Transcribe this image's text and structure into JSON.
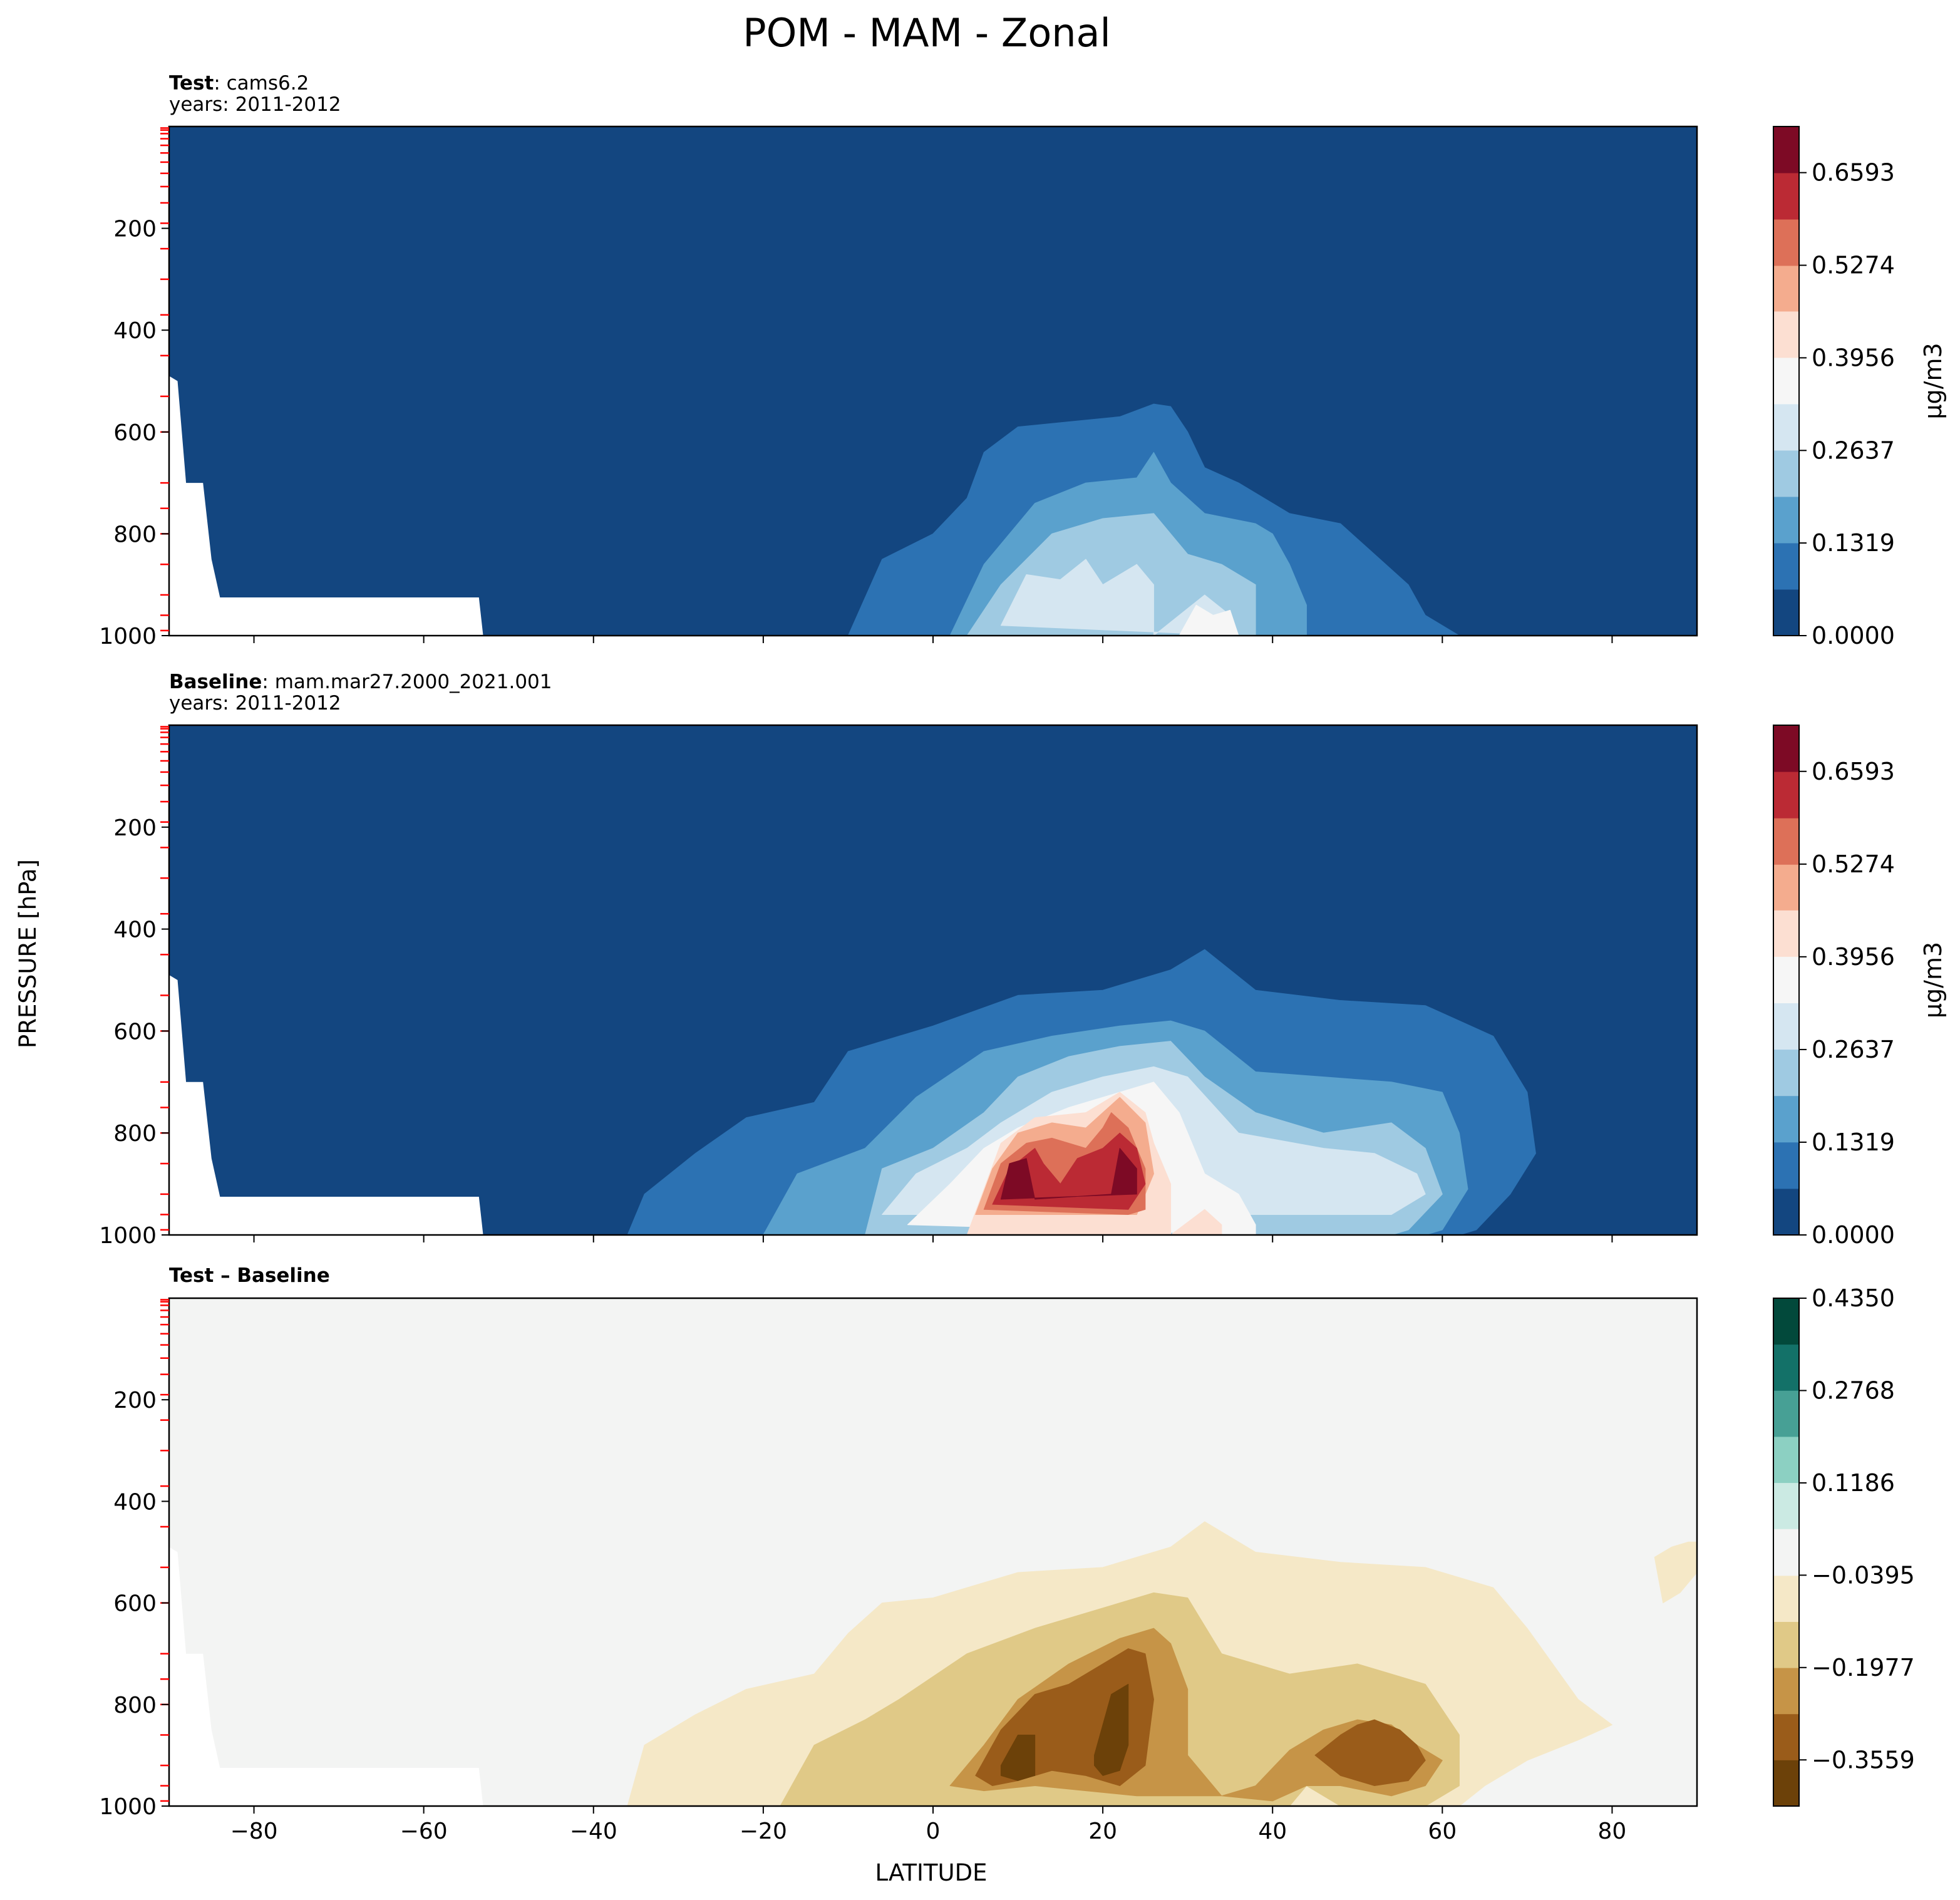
{
  "figure": {
    "title": "POM - MAM - Zonal",
    "ylabel": "PRESSURE [hPa]",
    "xlabel": "LATITUDE"
  },
  "chart_data": [
    {
      "type": "heatmap",
      "panel": "test",
      "label_bold": "Test",
      "label_sep": ": ",
      "label_text": "cams6.2",
      "years": "years: 2011-2012",
      "colorbar": {
        "label": "μg/m3",
        "levels": [
          0.0,
          0.066,
          0.132,
          0.198,
          0.264,
          0.33,
          0.396,
          0.462,
          0.527,
          0.593,
          0.659,
          0.725
        ],
        "tick_values": [
          0.0,
          0.1319,
          0.2637,
          0.3956,
          0.5274,
          0.6593
        ],
        "tick_labels": [
          "0.0000",
          "0.1319",
          "0.2637",
          "0.3956",
          "0.5274",
          "0.6593"
        ],
        "colors": [
          "#134680",
          "#2c72b3",
          "#5aa1cd",
          "#9fcae2",
          "#d5e6f1",
          "#f6f6f6",
          "#fcdfd2",
          "#f4ac8e",
          "#dd7058",
          "#bb2a34",
          "#7d0a25"
        ]
      },
      "features": [
        {
          "level": 1,
          "lat": [
            -10,
            -6,
            0,
            4,
            6,
            10,
            16,
            22,
            26,
            28,
            30,
            32,
            36,
            42,
            48,
            56,
            58,
            62
          ],
          "p": [
            1000,
            850,
            800,
            730,
            640,
            590,
            580,
            570,
            545,
            550,
            600,
            670,
            700,
            760,
            780,
            900,
            960,
            1000
          ]
        },
        {
          "level": 2,
          "lat": [
            2,
            6,
            12,
            18,
            24,
            26,
            28,
            32,
            38,
            40,
            42,
            44,
            44
          ],
          "p": [
            1000,
            860,
            740,
            700,
            690,
            640,
            700,
            760,
            780,
            800,
            860,
            940,
            1000
          ]
        },
        {
          "level": 3,
          "lat": [
            4,
            8,
            14,
            20,
            26,
            28,
            30,
            34,
            38,
            38
          ],
          "p": [
            1000,
            900,
            800,
            770,
            760,
            800,
            840,
            860,
            900,
            1000
          ]
        },
        {
          "level": 4,
          "lat": [
            8,
            11,
            15,
            18,
            20,
            22,
            24,
            26,
            26,
            32,
            35,
            36
          ],
          "p": [
            980,
            880,
            890,
            850,
            900,
            880,
            860,
            900,
            1000,
            920,
            960,
            1000
          ]
        },
        {
          "level": 5,
          "lat": [
            29,
            31,
            33,
            35,
            36
          ],
          "p": [
            1000,
            940,
            960,
            950,
            1000
          ]
        }
      ],
      "xlim": [
        -90,
        90
      ],
      "ylim": [
        1000,
        0
      ]
    },
    {
      "type": "heatmap",
      "panel": "baseline",
      "label_bold": "Baseline",
      "label_sep": ": ",
      "label_text": "mam.mar27.2000_2021.001",
      "years": "years: 2011-2012",
      "colorbar": {
        "label": "μg/m3",
        "levels": [
          0.0,
          0.066,
          0.132,
          0.198,
          0.264,
          0.33,
          0.396,
          0.462,
          0.527,
          0.593,
          0.659,
          0.725
        ],
        "tick_values": [
          0.0,
          0.1319,
          0.2637,
          0.3956,
          0.5274,
          0.6593
        ],
        "tick_labels": [
          "0.0000",
          "0.1319",
          "0.2637",
          "0.3956",
          "0.5274",
          "0.6593"
        ],
        "colors": [
          "#134680",
          "#2c72b3",
          "#5aa1cd",
          "#9fcae2",
          "#d5e6f1",
          "#f6f6f6",
          "#fcdfd2",
          "#f4ac8e",
          "#dd7058",
          "#bb2a34",
          "#7d0a25"
        ]
      },
      "features": [
        {
          "level": 1,
          "lat": [
            -36,
            -34,
            -28,
            -22,
            -14,
            -10,
            -4,
            0,
            10,
            20,
            28,
            32,
            38,
            48,
            58,
            66,
            70,
            71,
            68,
            64,
            62
          ],
          "p": [
            1000,
            920,
            840,
            770,
            740,
            640,
            610,
            590,
            530,
            520,
            480,
            440,
            520,
            540,
            550,
            610,
            720,
            840,
            920,
            990,
            1000
          ]
        },
        {
          "level": 2,
          "lat": [
            -20,
            -16,
            -8,
            -2,
            6,
            14,
            22,
            28,
            32,
            38,
            46,
            54,
            60,
            62,
            63,
            60,
            58
          ],
          "p": [
            1000,
            880,
            830,
            730,
            640,
            610,
            590,
            580,
            600,
            680,
            690,
            700,
            720,
            800,
            910,
            990,
            1000
          ]
        },
        {
          "level": 3,
          "lat": [
            -8,
            -6,
            0,
            6,
            10,
            16,
            22,
            28,
            32,
            38,
            46,
            54,
            58,
            60,
            56,
            54
          ],
          "p": [
            1000,
            870,
            830,
            760,
            690,
            650,
            630,
            620,
            690,
            760,
            800,
            780,
            830,
            920,
            990,
            1000
          ]
        },
        {
          "level": 4,
          "lat": [
            -6,
            -2,
            4,
            8,
            14,
            20,
            26,
            30,
            36,
            46,
            52,
            57,
            58,
            54
          ],
          "p": [
            960,
            880,
            830,
            780,
            720,
            690,
            670,
            690,
            800,
            830,
            840,
            880,
            920,
            960
          ]
        },
        {
          "level": 5,
          "lat": [
            -3,
            2,
            6,
            10,
            16,
            22,
            26,
            29,
            32,
            36,
            38,
            38
          ],
          "p": [
            980,
            900,
            830,
            790,
            750,
            720,
            700,
            760,
            880,
            920,
            980,
            1000
          ]
        },
        {
          "level": 6,
          "lat": [
            4,
            6,
            8,
            12,
            18,
            22,
            25,
            26,
            28,
            28,
            32,
            34,
            34
          ],
          "p": [
            1000,
            910,
            820,
            770,
            760,
            720,
            760,
            820,
            900,
            1000,
            950,
            980,
            1000
          ]
        },
        {
          "level": 7,
          "lat": [
            5,
            7,
            10,
            14,
            18,
            20,
            22,
            25,
            26,
            24
          ],
          "p": [
            960,
            870,
            800,
            780,
            790,
            760,
            730,
            780,
            880,
            960
          ]
        },
        {
          "level": 8,
          "lat": [
            6,
            8,
            11,
            14,
            18,
            20,
            21,
            23,
            25,
            25,
            23
          ],
          "p": [
            950,
            860,
            820,
            810,
            830,
            790,
            760,
            790,
            870,
            950,
            960
          ]
        },
        {
          "level": 9,
          "lat": [
            7,
            9,
            12,
            13,
            15,
            17,
            20,
            22,
            24,
            25,
            23
          ],
          "p": [
            940,
            870,
            830,
            860,
            900,
            850,
            830,
            800,
            830,
            900,
            950
          ]
        },
        {
          "level": 10,
          "lat": [
            8,
            9,
            11,
            12,
            21,
            22,
            24,
            24
          ],
          "p": [
            930,
            860,
            850,
            930,
            920,
            830,
            870,
            920
          ]
        }
      ],
      "xlim": [
        -90,
        90
      ],
      "ylim": [
        1000,
        0
      ]
    },
    {
      "type": "heatmap",
      "panel": "difference",
      "label_bold": "Test – Baseline",
      "colorbar": {
        "label": "",
        "levels": [
          -0.435,
          -0.356,
          -0.277,
          -0.198,
          -0.119,
          -0.04,
          0.04,
          0.119,
          0.198,
          0.277,
          0.356,
          0.435
        ],
        "tick_values": [
          -0.3559,
          -0.1977,
          -0.0395,
          0.1186,
          0.2768,
          0.435
        ],
        "tick_labels": [
          "−0.3559",
          "−0.1977",
          "−0.0395",
          "0.1186",
          "0.2768",
          "0.4350"
        ],
        "colors": [
          "#6c4109",
          "#9a5c1a",
          "#c69447",
          "#e0c987",
          "#f5e8c7",
          "#f3f4f3",
          "#cbeae3",
          "#8cd0c2",
          "#47a095",
          "#137168",
          "#02493b"
        ]
      },
      "features": [
        {
          "level": -1,
          "lat": [
            -36,
            -34,
            -28,
            -22,
            -14,
            -10,
            -6,
            0,
            10,
            20,
            28,
            32,
            38,
            48,
            58,
            66,
            70,
            73,
            76,
            80,
            76,
            70,
            65,
            62
          ],
          "p": [
            1000,
            880,
            820,
            770,
            740,
            660,
            600,
            590,
            540,
            530,
            490,
            440,
            500,
            520,
            530,
            570,
            650,
            720,
            790,
            840,
            870,
            910,
            960,
            1000
          ]
        },
        {
          "level": -1,
          "lat": [
            85,
            87,
            89,
            90,
            90,
            88,
            86
          ],
          "p": [
            510,
            490,
            480,
            480,
            540,
            580,
            600
          ]
        },
        {
          "level": -2,
          "lat": [
            -18,
            -14,
            -8,
            -4,
            4,
            12,
            20,
            26,
            30,
            34,
            42,
            50,
            58,
            62,
            62,
            58,
            54,
            48,
            44,
            42
          ],
          "p": [
            1000,
            880,
            830,
            790,
            700,
            650,
            610,
            580,
            590,
            700,
            740,
            720,
            760,
            860,
            960,
            1000,
            1000,
            1000,
            960,
            1000
          ]
        },
        {
          "level": -3,
          "lat": [
            2,
            6,
            10,
            16,
            22,
            26,
            28,
            30,
            30,
            34,
            38,
            42,
            46,
            50,
            54,
            57,
            60,
            58,
            54,
            48,
            44,
            40,
            34,
            30,
            24,
            18,
            12,
            6
          ],
          "p": [
            960,
            880,
            790,
            720,
            670,
            650,
            680,
            770,
            900,
            980,
            960,
            890,
            850,
            830,
            840,
            880,
            910,
            960,
            980,
            960,
            960,
            990,
            980,
            980,
            980,
            970,
            960,
            970
          ]
        },
        {
          "level": -4,
          "lat": [
            5,
            8,
            12,
            16,
            20,
            23,
            25,
            26,
            25,
            22,
            18,
            14,
            10,
            7
          ],
          "p": [
            940,
            850,
            780,
            760,
            720,
            690,
            700,
            790,
            920,
            960,
            940,
            930,
            950,
            960
          ]
        },
        {
          "level": -4,
          "lat": [
            45,
            48,
            50,
            52,
            55,
            57,
            58,
            56,
            52,
            48
          ],
          "p": [
            900,
            860,
            840,
            830,
            850,
            880,
            910,
            950,
            960,
            940
          ]
        },
        {
          "level": -5,
          "lat": [
            8,
            10,
            12,
            12,
            10,
            8
          ],
          "p": [
            920,
            860,
            860,
            940,
            950,
            940
          ]
        },
        {
          "level": -5,
          "lat": [
            19,
            21,
            23,
            23,
            22,
            20,
            19
          ],
          "p": [
            900,
            780,
            760,
            880,
            930,
            940,
            920
          ]
        }
      ],
      "xlim": [
        -90,
        90
      ],
      "ylim": [
        1000,
        0
      ]
    }
  ],
  "axes": {
    "x_ticks": [
      -80,
      -60,
      -40,
      -20,
      0,
      20,
      40,
      60,
      80
    ],
    "x_tick_labels": [
      "−80",
      "−60",
      "−40",
      "−20",
      "0",
      "20",
      "40",
      "60",
      "80"
    ],
    "y_ticks": [
      200,
      400,
      600,
      800,
      1000
    ],
    "y_tick_labels": [
      "200",
      "400",
      "600",
      "800",
      "1000"
    ],
    "model_levels_hpa": [
      3,
      7,
      14,
      24,
      37,
      52,
      70,
      92,
      118,
      150,
      190,
      240,
      300,
      370,
      450,
      530,
      600,
      700,
      750,
      800,
      860,
      920,
      960,
      990
    ],
    "level_marker_color": "#ff0000"
  }
}
